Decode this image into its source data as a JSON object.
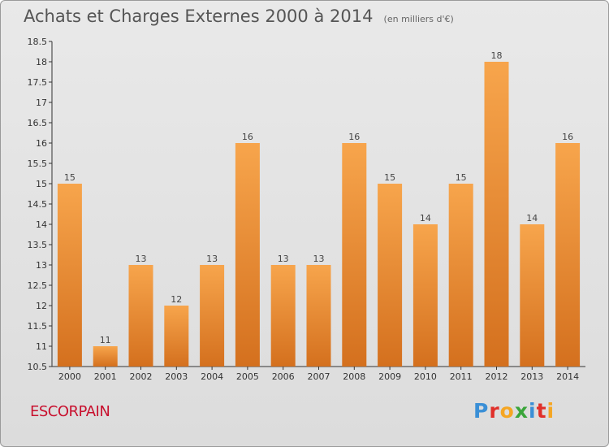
{
  "header": {
    "title": "Achats et Charges Externes 2000 à 2014",
    "unit": "(en milliers d'€)"
  },
  "footer": {
    "location": "ESCORPAIN",
    "logo": {
      "text": "Proxiti",
      "letters": [
        {
          "char": "P",
          "color": "#3a8fd6"
        },
        {
          "char": "r",
          "color": "#e0302a"
        },
        {
          "char": "o",
          "color": "#f5a623"
        },
        {
          "char": "x",
          "color": "#3aa53a"
        },
        {
          "char": "i",
          "color": "#3a8fd6"
        },
        {
          "char": "t",
          "color": "#e0302a"
        },
        {
          "char": "i",
          "color": "#f5a623"
        }
      ]
    }
  },
  "chart_data": {
    "type": "bar",
    "title": "Achats et Charges Externes 2000 à 2014",
    "xlabel": "",
    "ylabel": "",
    "categories": [
      "2000",
      "2001",
      "2002",
      "2003",
      "2004",
      "2005",
      "2006",
      "2007",
      "2008",
      "2009",
      "2010",
      "2011",
      "2012",
      "2013",
      "2014"
    ],
    "values": [
      15,
      11,
      13,
      12,
      13,
      16,
      13,
      13,
      16,
      15,
      14,
      15,
      18,
      14,
      16
    ],
    "ylim": [
      10.5,
      18.5
    ],
    "yticks": [
      "10.5",
      "11",
      "11.5",
      "12",
      "12.5",
      "13",
      "13.5",
      "14",
      "14.5",
      "15",
      "15.5",
      "16",
      "16.5",
      "17",
      "17.5",
      "18",
      "18.5"
    ],
    "grid": false,
    "legend": "none",
    "colors": {
      "bar_top": "#f7a54c",
      "bar_bottom": "#d4701e",
      "axis": "#333333"
    }
  }
}
